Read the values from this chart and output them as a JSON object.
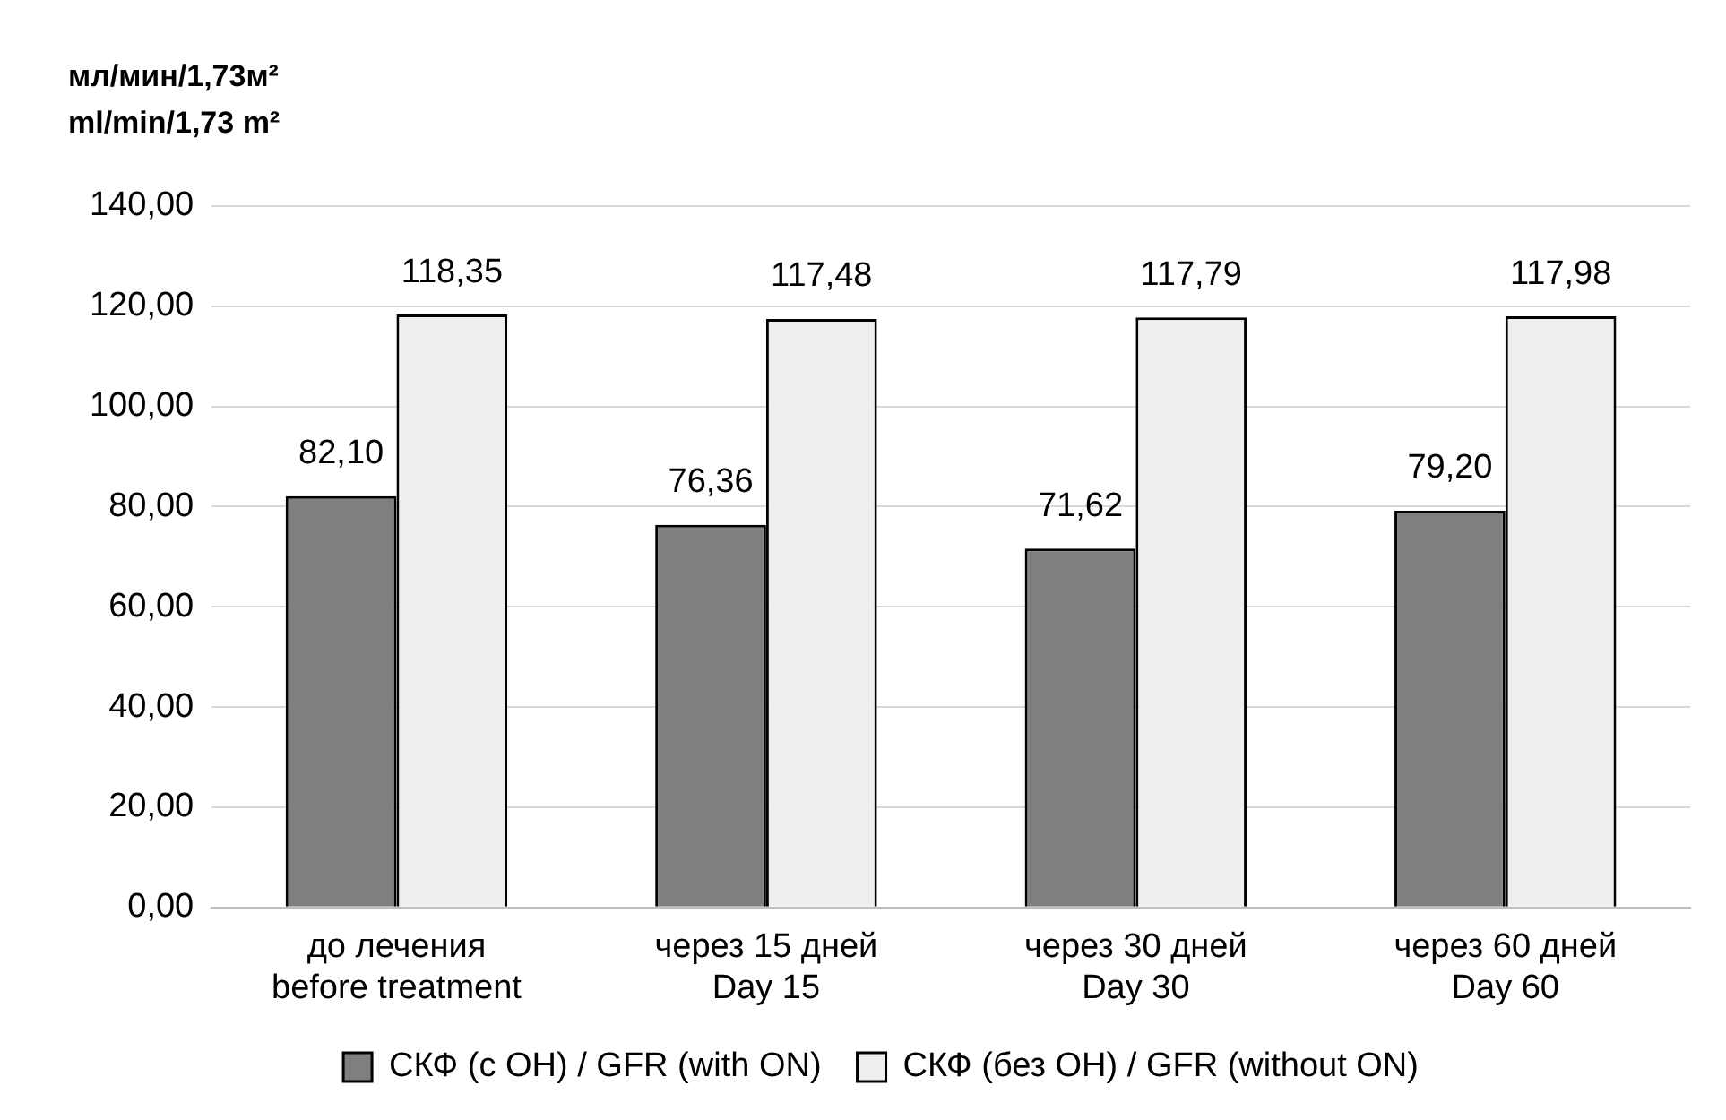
{
  "chart_data": {
    "type": "bar",
    "ylabel": "мл/мин/1,73м²\nml/min/1,73 m²",
    "categories": [
      "до лечения\nbefore treatment",
      "через 15 дней\nDay 15",
      "через 30 дней\nDay 30",
      "через 60 дней\nDay 60"
    ],
    "series": [
      {
        "name": "СКФ (с ОН) / GFR (with ON)",
        "color": "#7f7f7f",
        "values": [
          82.1,
          76.36,
          71.62,
          79.2
        ],
        "value_labels": [
          "82,10",
          "76,36",
          "71,62",
          "79,20"
        ]
      },
      {
        "name": "СКФ (без ОН) / GFR (without ON)",
        "color": "#eeeeee",
        "values": [
          118.35,
          117.48,
          117.79,
          117.98
        ],
        "value_labels": [
          "118,35",
          "117,48",
          "117,79",
          "117,98"
        ]
      }
    ],
    "ylim": [
      0,
      140
    ],
    "yticks": [
      {
        "value": 0,
        "label": "0,00"
      },
      {
        "value": 20,
        "label": "20,00"
      },
      {
        "value": 40,
        "label": "40,00"
      },
      {
        "value": 60,
        "label": "60,00"
      },
      {
        "value": 80,
        "label": "80,00"
      },
      {
        "value": 100,
        "label": "100,00"
      },
      {
        "value": 120,
        "label": "120,00"
      },
      {
        "value": 140,
        "label": "140,00"
      }
    ],
    "grid": "y",
    "legend": "bottom"
  }
}
